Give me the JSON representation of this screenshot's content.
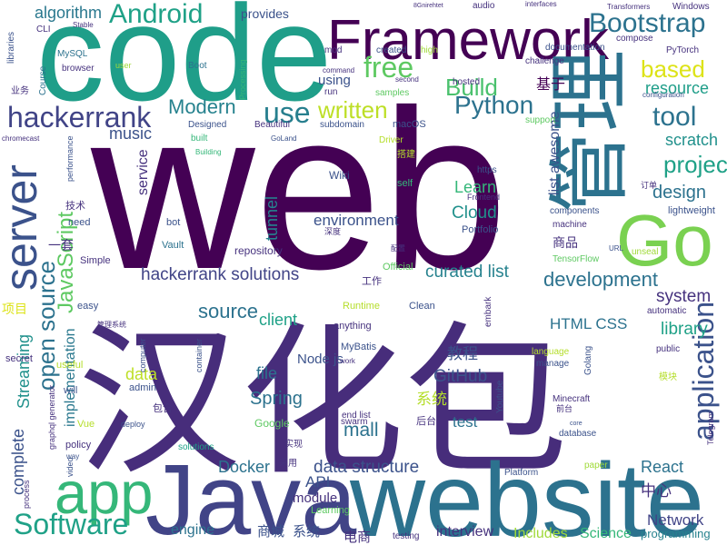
{
  "words": [
    {
      "text": "web",
      "color": "#440154"
    },
    {
      "text": "汉化包",
      "color": "#472d7b"
    },
    {
      "text": "code",
      "color": "#1f9e89"
    },
    {
      "text": "Java",
      "color": "#414487"
    },
    {
      "text": "website",
      "color": "#2c728e"
    },
    {
      "text": "Framework",
      "color": "#440154"
    },
    {
      "text": "管理",
      "color": "#2c728e"
    },
    {
      "text": "Go",
      "color": "#7ad151"
    },
    {
      "text": "server",
      "color": "#3b528b"
    },
    {
      "text": "app",
      "color": "#35b779"
    },
    {
      "text": "Software",
      "color": "#1fa187"
    },
    {
      "text": "Android",
      "color": "#1fa187"
    },
    {
      "text": "algorithm",
      "color": "#2a788e"
    },
    {
      "text": "Bootstrap",
      "color": "#2c728e"
    },
    {
      "text": "free",
      "color": "#5ec962"
    },
    {
      "text": "Build",
      "color": "#4ac16d"
    },
    {
      "text": "based",
      "color": "#dde318"
    },
    {
      "text": "resource",
      "color": "#1f9e89"
    },
    {
      "text": "基于",
      "color": "#440154"
    },
    {
      "text": "tool",
      "color": "#2c728e"
    },
    {
      "text": "Python",
      "color": "#2c728e"
    },
    {
      "text": "written",
      "color": "#bddf26"
    },
    {
      "text": "hackerrank",
      "color": "#414487"
    },
    {
      "text": "Modern",
      "color": "#26828e"
    },
    {
      "text": "use",
      "color": "#277f8e"
    },
    {
      "text": "music",
      "color": "#3b528b"
    },
    {
      "text": "JavaScript",
      "color": "#5ec962"
    },
    {
      "text": "open source",
      "color": "#2c728e"
    },
    {
      "text": "implementation",
      "color": "#2a788e"
    },
    {
      "text": "Streaming",
      "color": "#21918c"
    },
    {
      "text": "complete",
      "color": "#3b528b"
    },
    {
      "text": "project",
      "color": "#1fa187"
    },
    {
      "text": "scratch",
      "color": "#21918c"
    },
    {
      "text": "design",
      "color": "#2c728e"
    },
    {
      "text": "lightweight",
      "color": "#3b528b"
    },
    {
      "text": "hackerrank solutions",
      "color": "#414487"
    },
    {
      "text": "development",
      "color": "#2c728e"
    },
    {
      "text": "curated list",
      "color": "#26828e"
    },
    {
      "text": "environment",
      "color": "#3b528b"
    },
    {
      "text": "Cloud",
      "color": "#21918c"
    },
    {
      "text": "Learn",
      "color": "#35b779"
    },
    {
      "text": "list awesome",
      "color": "#3b528b"
    },
    {
      "text": "application",
      "color": "#3b528b"
    },
    {
      "text": "system",
      "color": "#46327e"
    },
    {
      "text": "library",
      "color": "#1fa187"
    },
    {
      "text": "source",
      "color": "#2c728e"
    },
    {
      "text": "client",
      "color": "#1fa187"
    },
    {
      "text": "HTML CSS",
      "color": "#2c728e"
    },
    {
      "text": "教程",
      "color": "#3b528b"
    },
    {
      "text": "GitHub",
      "color": "#3b528b"
    },
    {
      "text": "file",
      "color": "#2c728e"
    },
    {
      "text": "data",
      "color": "#bddf26"
    },
    {
      "text": "Spring",
      "color": "#2c728e"
    },
    {
      "text": "系统",
      "color": "#b5de2b"
    },
    {
      "text": "mall",
      "color": "#2c728e"
    },
    {
      "text": "test",
      "color": "#2c728e"
    },
    {
      "text": "Docker",
      "color": "#2c728e"
    },
    {
      "text": "data structure",
      "color": "#3b528b"
    },
    {
      "text": "API",
      "color": "#3b528b"
    },
    {
      "text": "module",
      "color": "#46327e"
    },
    {
      "text": "React",
      "color": "#2c728e"
    },
    {
      "text": "中心",
      "color": "#46327e"
    },
    {
      "text": "Network",
      "color": "#414487"
    },
    {
      "text": "programming",
      "color": "#26828e"
    },
    {
      "text": "Science",
      "color": "#35b779"
    },
    {
      "text": "Includes",
      "color": "#a0da39"
    },
    {
      "text": "interview",
      "color": "#46327e"
    },
    {
      "text": "电商",
      "color": "#46327e"
    },
    {
      "text": "商城",
      "color": "#3b528b"
    },
    {
      "text": "系统",
      "color": "#3b528b"
    },
    {
      "text": "engine",
      "color": "#2c728e"
    },
    {
      "text": "Node js",
      "color": "#3b528b"
    },
    {
      "text": "service",
      "color": "#46327e"
    },
    {
      "text": "tunnel",
      "color": "#26828e"
    },
    {
      "text": "bot",
      "color": "#3b528b"
    },
    {
      "text": "Vault",
      "color": "#2c728e"
    },
    {
      "text": "repository",
      "color": "#46327e"
    },
    {
      "text": "Wiki",
      "color": "#3b528b"
    },
    {
      "text": "self",
      "color": "#35b779"
    },
    {
      "text": "Portfolio",
      "color": "#3b528b"
    },
    {
      "text": "Frontend",
      "color": "#46327e"
    },
    {
      "text": "machine",
      "color": "#46327e"
    },
    {
      "text": "components",
      "color": "#3b528b"
    },
    {
      "text": "商品",
      "color": "#46327e"
    },
    {
      "text": "一套",
      "color": "#46327e"
    },
    {
      "text": "need",
      "color": "#3b528b"
    },
    {
      "text": "技术",
      "color": "#46327e"
    },
    {
      "text": "Simple",
      "color": "#46327e"
    },
    {
      "text": "项目",
      "color": "#dde318"
    },
    {
      "text": "easy",
      "color": "#3b528b"
    },
    {
      "text": "工作",
      "color": "#46327e"
    },
    {
      "text": "Official",
      "color": "#5ec962"
    },
    {
      "text": "Runtime",
      "color": "#b5de2b"
    },
    {
      "text": "Clean",
      "color": "#3b528b"
    },
    {
      "text": "anything",
      "color": "#46327e"
    },
    {
      "text": "MyBatis",
      "color": "#3b528b"
    },
    {
      "text": "work",
      "color": "#46327e"
    },
    {
      "text": "Learning",
      "color": "#5ec962"
    },
    {
      "text": "swarm",
      "color": "#46327e"
    },
    {
      "text": "实现",
      "color": "#46327e"
    },
    {
      "text": "采用",
      "color": "#46327e"
    },
    {
      "text": "solutions",
      "color": "#1fa187"
    },
    {
      "text": "Google",
      "color": "#5ec962"
    },
    {
      "text": "deploy",
      "color": "#3b528b"
    },
    {
      "text": "包含",
      "color": "#46327e"
    },
    {
      "text": "admin",
      "color": "#3b528b"
    },
    {
      "text": "will",
      "color": "#3b528b"
    },
    {
      "text": "useful",
      "color": "#b5de2b"
    },
    {
      "text": "Vue",
      "color": "#b5de2b"
    },
    {
      "text": "policy",
      "color": "#46327e"
    },
    {
      "text": "Youtube",
      "color": "#3b528b"
    },
    {
      "text": "Golang",
      "color": "#3b528b"
    },
    {
      "text": "Minecraft",
      "color": "#46327e"
    },
    {
      "text": "database",
      "color": "#3b528b"
    },
    {
      "text": "后台",
      "color": "#46327e"
    },
    {
      "text": "end list",
      "color": "#46327e"
    },
    {
      "text": "Platform",
      "color": "#3b528b"
    },
    {
      "text": "paper",
      "color": "#a0da39"
    },
    {
      "text": "language",
      "color": "#b5de2b"
    },
    {
      "text": "manage",
      "color": "#3b528b"
    },
    {
      "text": "public",
      "color": "#46327e"
    },
    {
      "text": "automatic",
      "color": "#46327e"
    },
    {
      "text": "模块",
      "color": "#b5de2b"
    },
    {
      "text": "TensorFlow",
      "color": "#5ec962"
    },
    {
      "text": "unseal",
      "color": "#a0da39"
    },
    {
      "text": "configuration",
      "color": "#3b528b"
    },
    {
      "text": "PyTorch",
      "color": "#46327e"
    },
    {
      "text": "compose",
      "color": "#46327e"
    },
    {
      "text": "documentation",
      "color": "#3b528b"
    },
    {
      "text": "Windows",
      "color": "#46327e"
    },
    {
      "text": "interfaces",
      "color": "#46327e"
    },
    {
      "text": "audio",
      "color": "#46327e"
    },
    {
      "text": "provides",
      "color": "#3b528b"
    },
    {
      "text": "mod",
      "color": "#46327e"
    },
    {
      "text": "created",
      "color": "#3b528b"
    },
    {
      "text": "high",
      "color": "#a0da39"
    },
    {
      "text": "challenge",
      "color": "#46327e"
    },
    {
      "text": "hosted",
      "color": "#46327e"
    },
    {
      "text": "second",
      "color": "#46327e"
    },
    {
      "text": "command",
      "color": "#46327e"
    },
    {
      "text": "using",
      "color": "#3b528b"
    },
    {
      "text": "run",
      "color": "#46327e"
    },
    {
      "text": "samples",
      "color": "#5ec962"
    },
    {
      "text": "subdomain",
      "color": "#3b528b"
    },
    {
      "text": "macOS",
      "color": "#3b528b"
    },
    {
      "text": "Driver",
      "color": "#b5de2b"
    },
    {
      "text": "support",
      "color": "#5ec962"
    },
    {
      "text": "https",
      "color": "#3b528b"
    },
    {
      "text": "搭建",
      "color": "#b5de2b"
    },
    {
      "text": "Designed",
      "color": "#3b528b"
    },
    {
      "text": "built",
      "color": "#35b779"
    },
    {
      "text": "Beautiful",
      "color": "#46327e"
    },
    {
      "text": "GoLand",
      "color": "#3b528b"
    },
    {
      "text": "Building",
      "color": "#35b779"
    },
    {
      "text": "Boot",
      "color": "#2c728e"
    },
    {
      "text": "user",
      "color": "#a0da39"
    },
    {
      "text": "browser",
      "color": "#46327e"
    },
    {
      "text": "Course",
      "color": "#2c728e"
    },
    {
      "text": "libraries",
      "color": "#3b528b"
    },
    {
      "text": "MySQL",
      "color": "#2c728e"
    },
    {
      "text": "CLI",
      "color": "#46327e"
    },
    {
      "text": "Stable",
      "color": "#46327e"
    },
    {
      "text": "performance",
      "color": "#3b528b"
    },
    {
      "text": "secret",
      "color": "#46327e"
    },
    {
      "text": "chromecast",
      "color": "#46327e"
    },
    {
      "text": "业务",
      "color": "#46327e"
    },
    {
      "text": "process",
      "color": "#46327e"
    },
    {
      "text": "graphql generator",
      "color": "#46327e"
    },
    {
      "text": "computer",
      "color": "#3b528b"
    },
    {
      "text": "container",
      "color": "#3b528b"
    },
    {
      "text": "embark",
      "color": "#46327e"
    },
    {
      "text": "Processing",
      "color": "#35b779"
    },
    {
      "text": "Telegram",
      "color": "#46327e"
    },
    {
      "text": "video",
      "color": "#3b528b"
    },
    {
      "text": "way",
      "color": "#3b528b"
    },
    {
      "text": "testing",
      "color": "#46327e"
    },
    {
      "text": "Transformers",
      "color": "#46327e"
    },
    {
      "text": "URL",
      "color": "#3b528b"
    },
    {
      "text": "core",
      "color": "#3b528b"
    },
    {
      "text": "8Gnirehtet",
      "color": "#46327e"
    },
    {
      "text": "深度",
      "color": "#46327e"
    },
    {
      "text": "配置",
      "color": "#46327e"
    },
    {
      "text": "订单",
      "color": "#46327e"
    },
    {
      "text": "前台",
      "color": "#46327e"
    },
    {
      "text": "管理系统",
      "color": "#46327e"
    }
  ]
}
